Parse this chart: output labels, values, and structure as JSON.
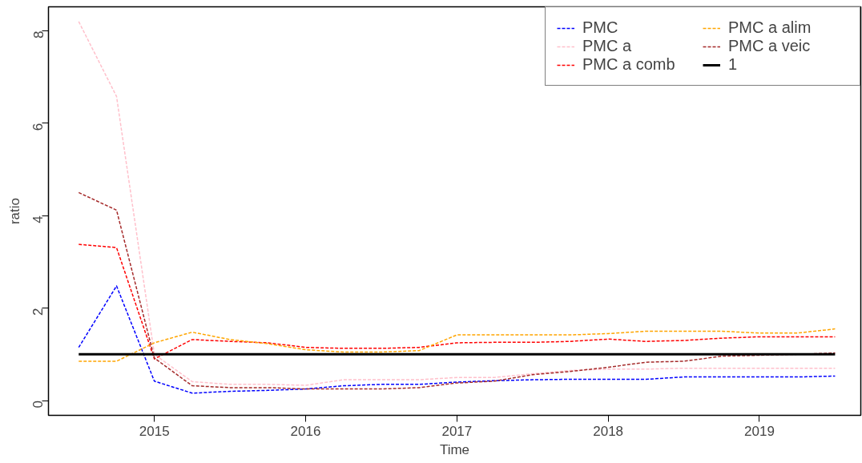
{
  "chart_data": {
    "type": "line",
    "xlabel": "Time",
    "ylabel": "ratio",
    "x": [
      2014.5,
      2014.75,
      2015,
      2015.25,
      2015.5,
      2015.75,
      2016,
      2016.25,
      2016.5,
      2016.75,
      2017,
      2017.25,
      2017.5,
      2017.75,
      2018,
      2018.25,
      2018.5,
      2018.75,
      2019,
      2019.25,
      2019.5
    ],
    "xlim": [
      2014.3,
      2019.67
    ],
    "ylim": [
      -0.32,
      8.52
    ],
    "xticks": [
      2015,
      2016,
      2017,
      2018,
      2019
    ],
    "yticks": [
      0,
      2,
      4,
      6,
      8
    ],
    "grid": false,
    "legend": "top right",
    "marker": "none",
    "line_style": "dashed",
    "series": [
      {
        "name": "PMC",
        "color": "#0000ff",
        "values": [
          1.15,
          2.48,
          0.42,
          0.16,
          0.2,
          0.22,
          0.25,
          0.32,
          0.35,
          0.35,
          0.4,
          0.43,
          0.45,
          0.46,
          0.46,
          0.46,
          0.51,
          0.51,
          0.51,
          0.51,
          0.53
        ]
      },
      {
        "name": "PMC a",
        "color": "#ffc0cb",
        "values": [
          8.2,
          6.58,
          1.0,
          0.41,
          0.35,
          0.35,
          0.33,
          0.45,
          0.45,
          0.45,
          0.5,
          0.5,
          0.58,
          0.65,
          0.68,
          0.68,
          0.7,
          0.7,
          0.7,
          0.7,
          0.7
        ]
      },
      {
        "name": "PMC a comb",
        "color": "#ff0000",
        "values": [
          3.38,
          3.31,
          0.9,
          1.32,
          1.28,
          1.25,
          1.15,
          1.13,
          1.13,
          1.15,
          1.25,
          1.26,
          1.26,
          1.28,
          1.33,
          1.28,
          1.3,
          1.35,
          1.38,
          1.38,
          1.38
        ]
      },
      {
        "name": "PMC a alim",
        "color": "#ffa500",
        "values": [
          0.85,
          0.85,
          1.25,
          1.48,
          1.32,
          1.23,
          1.1,
          1.05,
          1.05,
          1.08,
          1.42,
          1.42,
          1.42,
          1.42,
          1.45,
          1.5,
          1.5,
          1.5,
          1.46,
          1.46,
          1.55
        ]
      },
      {
        "name": "PMC a veic",
        "color": "#a52a2a",
        "values": [
          4.5,
          4.12,
          0.92,
          0.32,
          0.28,
          0.28,
          0.25,
          0.25,
          0.25,
          0.28,
          0.38,
          0.42,
          0.56,
          0.63,
          0.72,
          0.83,
          0.85,
          0.96,
          0.98,
          1.0,
          1.03
        ]
      },
      {
        "name": "1",
        "color": "#000000",
        "line_style": "solid",
        "values": [
          1,
          1,
          1,
          1,
          1,
          1,
          1,
          1,
          1,
          1,
          1,
          1,
          1,
          1,
          1,
          1,
          1,
          1,
          1,
          1,
          1
        ]
      }
    ]
  }
}
